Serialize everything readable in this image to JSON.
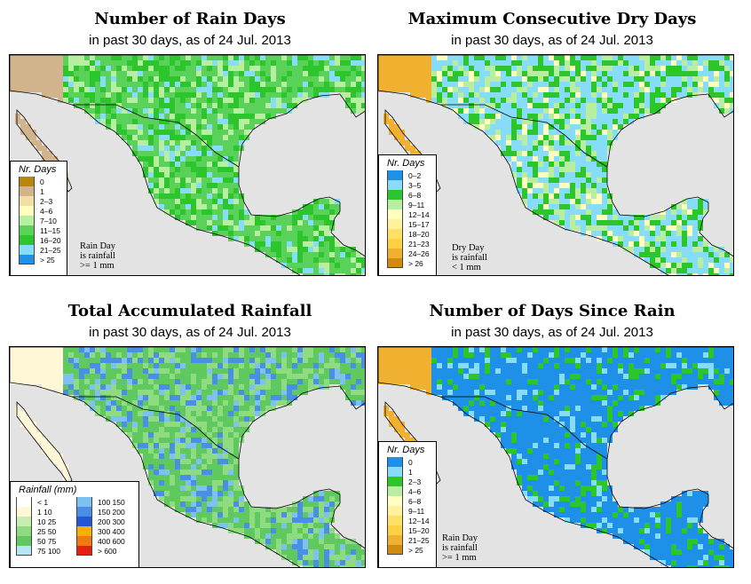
{
  "panels": [
    {
      "id": "rain-days",
      "title": "Number of Rain Days",
      "subtitle": "in past 30 days, as of  24 Jul. 2013",
      "legend_title": "Nr. Days",
      "legend": [
        {
          "label": "0",
          "color": "#b8860b"
        },
        {
          "label": "1",
          "color": "#d2b48c"
        },
        {
          "label": "2–3",
          "color": "#f0e0a8"
        },
        {
          "label": "4–6",
          "color": "#ffffc0"
        },
        {
          "label": "7–10",
          "color": "#b8eea0"
        },
        {
          "label": "11–15",
          "color": "#5ad25a"
        },
        {
          "label": "16–20",
          "color": "#2cc52c"
        },
        {
          "label": "21–25",
          "color": "#87ddf7"
        },
        {
          "label": "> 25",
          "color": "#1e90e8"
        }
      ],
      "note": "Rain Day\nis rainfall\n>= 1 mm",
      "dominant": [
        "#5ad25a",
        "#2cc52c",
        "#b8eea0",
        "#87ddf7"
      ]
    },
    {
      "id": "dry-days",
      "title": "Maximum Consecutive Dry Days",
      "subtitle": "in past 30 days, as of  24 Jul. 2013",
      "legend_title": "Nr. Days",
      "legend": [
        {
          "label": "0–2",
          "color": "#1e90e8"
        },
        {
          "label": "3–5",
          "color": "#87ddf7"
        },
        {
          "label": "6–8",
          "color": "#2cc52c"
        },
        {
          "label": "9–11",
          "color": "#b8eea0"
        },
        {
          "label": "12–14",
          "color": "#ffffc0"
        },
        {
          "label": "15–17",
          "color": "#fff29a"
        },
        {
          "label": "18–20",
          "color": "#ffe066"
        },
        {
          "label": "21–23",
          "color": "#ffd040"
        },
        {
          "label": "24–26",
          "color": "#f0b030"
        },
        {
          "label": "> 26",
          "color": "#d08a10"
        }
      ],
      "note": "Dry Day\nis rainfall\n< 1 mm",
      "dominant": [
        "#87ddf7",
        "#2cc52c",
        "#b8eea0",
        "#ffffc0"
      ]
    },
    {
      "id": "total-rainfall",
      "title": "Total Accumulated Rainfall",
      "subtitle": "in past 30 days, as of  24 Jul. 2013",
      "legend_title": "Rainfall (mm)",
      "legend_left": [
        {
          "label": "< 1",
          "color": "#ffffff"
        },
        {
          "label": "1   10",
          "color": "#fff7d5"
        },
        {
          "label": "10   25",
          "color": "#c6eeb0"
        },
        {
          "label": "25   50",
          "color": "#8fdc80"
        },
        {
          "label": "50   75",
          "color": "#5fc85f"
        },
        {
          "label": "75   100",
          "color": "#b4e6f7"
        }
      ],
      "legend_right": [
        {
          "label": "100   150",
          "color": "#7ec0f0"
        },
        {
          "label": "150   200",
          "color": "#4a8fe6"
        },
        {
          "label": "200   300",
          "color": "#2457d6"
        },
        {
          "label": "300   400",
          "color": "#f5b000"
        },
        {
          "label": "400   600",
          "color": "#f07a10"
        },
        {
          "label": "> 600",
          "color": "#e62010"
        }
      ],
      "dominant": [
        "#5fc85f",
        "#8fdc80",
        "#4a8fe6",
        "#7ec0f0"
      ]
    },
    {
      "id": "days-since-rain",
      "title": "Number of Days Since Rain",
      "subtitle": "in past 30 days, as of  24 Jul. 2013",
      "legend_title": "Nr. Days",
      "legend": [
        {
          "label": "0",
          "color": "#1e90e8"
        },
        {
          "label": "1",
          "color": "#87ddf7"
        },
        {
          "label": "2–3",
          "color": "#2cc52c"
        },
        {
          "label": "4–6",
          "color": "#b8eea0"
        },
        {
          "label": "6–8",
          "color": "#ffffc0"
        },
        {
          "label": "9–11",
          "color": "#fff29a"
        },
        {
          "label": "12–14",
          "color": "#ffe066"
        },
        {
          "label": "15–20",
          "color": "#ffd040"
        },
        {
          "label": "21–25",
          "color": "#f0b030"
        },
        {
          "label": "> 25",
          "color": "#d08a10"
        }
      ],
      "note": "Rain Day\nis rainfall\n>= 1 mm",
      "dominant": [
        "#1e90e8",
        "#1e90e8",
        "#2cc52c",
        "#87ddf7"
      ]
    }
  ],
  "colors": {
    "ocean": "#e3e3e3",
    "border": "#000000"
  }
}
